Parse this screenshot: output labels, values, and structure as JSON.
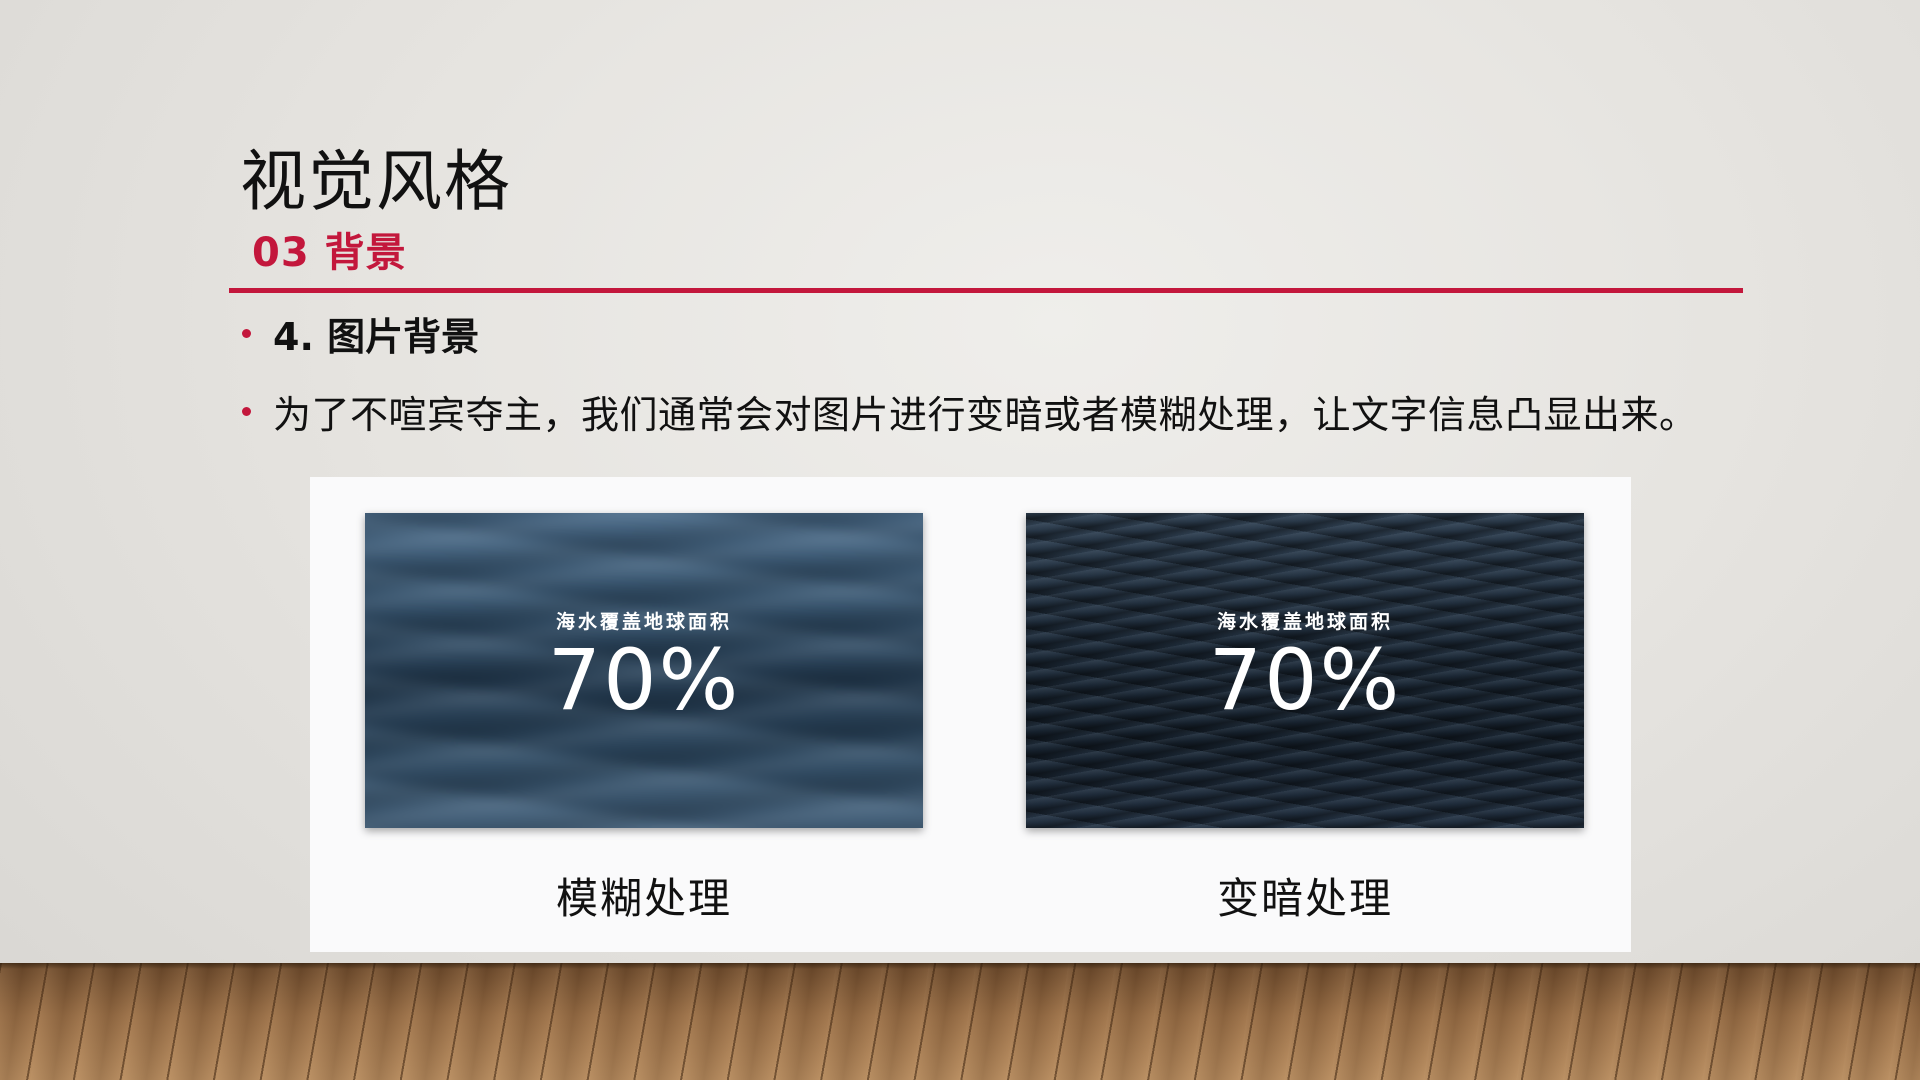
{
  "slide": {
    "title": "视觉风格",
    "subtitle": "03 背景",
    "bullets": [
      "4. 图片背景",
      "为了不喧宾夺主，我们通常会对图片进行变暗或者模糊处理，让文字信息凸显出来。"
    ]
  },
  "examples": [
    {
      "image_caption": "海水覆盖地球面积",
      "image_value": "70%",
      "label": "模糊处理"
    },
    {
      "image_caption": "海水覆盖地球面积",
      "image_value": "70%",
      "label": "变暗处理"
    }
  ],
  "colors": {
    "accent": "#c3173c",
    "panel_background": "#fafafb",
    "text": "#111111"
  }
}
